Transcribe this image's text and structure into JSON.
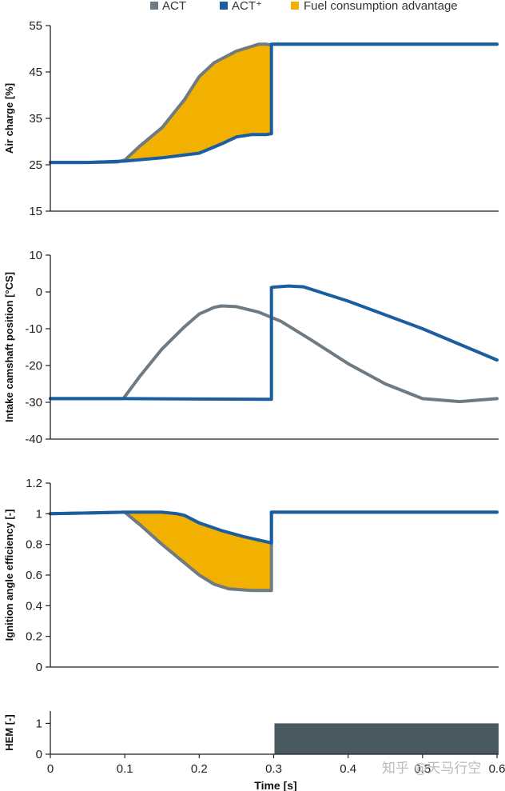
{
  "legend": {
    "items": [
      {
        "label": "ACT",
        "color": "#6e7b82"
      },
      {
        "label": "ACT⁺",
        "color": "#1a5ea0"
      },
      {
        "label": "Fuel consumption advantage",
        "color": "#f2b000"
      }
    ]
  },
  "xaxis": {
    "label": "Time [s]",
    "range": [
      0,
      0.6
    ],
    "ticks": [
      0,
      0.1,
      0.2,
      0.3,
      0.4,
      0.5,
      0.6
    ],
    "tick_labels": [
      "0",
      "0.1",
      "0.2",
      "0.3",
      "0.4",
      "0.5",
      "0.6"
    ]
  },
  "watermark": "知乎 @天马行空",
  "colors": {
    "act": "#6e7b82",
    "act_plus": "#1a5ea0",
    "advantage": "#f2b000",
    "hem": "#4a5860"
  },
  "chart_data": [
    {
      "type": "line",
      "id": "air",
      "ylabel": "Air charge [%]",
      "ylim": [
        15,
        55
      ],
      "yticks": [
        15,
        25,
        35,
        45,
        55
      ],
      "ytick_labels": [
        "15",
        "25",
        "35",
        "45",
        "55"
      ],
      "fill_between": [
        "ACT",
        "ACT⁺"
      ],
      "series": [
        {
          "name": "ACT",
          "x": [
            0,
            0.05,
            0.09,
            0.1,
            0.12,
            0.15,
            0.18,
            0.2,
            0.22,
            0.25,
            0.27,
            0.28,
            0.29,
            0.297,
            0.3,
            0.35,
            0.45,
            0.6
          ],
          "y": [
            25.5,
            25.5,
            25.6,
            26,
            29,
            33,
            39,
            44,
            47,
            49.5,
            50.5,
            51,
            51,
            50.8,
            51,
            51,
            51,
            51
          ]
        },
        {
          "name": "ACT⁺",
          "x": [
            0,
            0.05,
            0.1,
            0.15,
            0.2,
            0.23,
            0.25,
            0.27,
            0.29,
            0.297,
            0.297,
            0.3,
            0.35,
            0.45,
            0.6
          ],
          "y": [
            25.5,
            25.5,
            25.8,
            26.5,
            27.5,
            29.5,
            31,
            31.5,
            31.5,
            31.7,
            51,
            51,
            51,
            51,
            51
          ]
        }
      ]
    },
    {
      "type": "line",
      "id": "cam",
      "ylabel": "Intake camshaft position [°CS]",
      "ylim": [
        -40,
        10
      ],
      "yticks": [
        -40,
        -30,
        -20,
        -10,
        0,
        10
      ],
      "ytick_labels": [
        "-40",
        "-30",
        "-20",
        "-10",
        "0",
        "10"
      ],
      "series": [
        {
          "name": "ACT",
          "x": [
            0,
            0.05,
            0.098,
            0.12,
            0.15,
            0.18,
            0.2,
            0.22,
            0.23,
            0.25,
            0.28,
            0.31,
            0.35,
            0.4,
            0.45,
            0.5,
            0.55,
            0.6
          ],
          "y": [
            -29,
            -29,
            -29,
            -23,
            -15.5,
            -9.5,
            -6,
            -4.2,
            -3.8,
            -4,
            -5.5,
            -8,
            -13,
            -19.5,
            -25,
            -29,
            -29.8,
            -29
          ]
        },
        {
          "name": "ACT⁺",
          "x": [
            0,
            0.1,
            0.2,
            0.297,
            0.297,
            0.3,
            0.32,
            0.34,
            0.4,
            0.5,
            0.6
          ],
          "y": [
            -29,
            -29,
            -29.1,
            -29.2,
            1.2,
            1.3,
            1.6,
            1.4,
            -2.5,
            -10,
            -18.5
          ]
        }
      ]
    },
    {
      "type": "line",
      "id": "ign",
      "ylabel": "Ignition angle efficiency [-]",
      "ylim": [
        0,
        1.2
      ],
      "yticks": [
        0,
        0.2,
        0.4,
        0.6,
        0.8,
        1,
        1.2
      ],
      "ytick_labels": [
        "0",
        "0.2",
        "0.4",
        "0.6",
        "0.8",
        "1",
        "1.2"
      ],
      "fill_between": [
        "ACT⁺",
        "ACT"
      ],
      "series": [
        {
          "name": "ACT",
          "x": [
            0,
            0.05,
            0.1,
            0.12,
            0.15,
            0.18,
            0.2,
            0.22,
            0.24,
            0.27,
            0.297,
            0.297,
            0.3,
            0.4,
            0.6
          ],
          "y": [
            1.0,
            1.005,
            1.01,
            0.93,
            0.8,
            0.68,
            0.6,
            0.54,
            0.51,
            0.5,
            0.5,
            1.01,
            1.01,
            1.01,
            1.01
          ]
        },
        {
          "name": "ACT⁺",
          "x": [
            0,
            0.05,
            0.1,
            0.15,
            0.17,
            0.18,
            0.2,
            0.23,
            0.26,
            0.297,
            0.297,
            0.3,
            0.4,
            0.6
          ],
          "y": [
            1.0,
            1.005,
            1.01,
            1.01,
            1.0,
            0.99,
            0.94,
            0.89,
            0.85,
            0.81,
            1.01,
            1.01,
            1.01,
            1.01
          ]
        }
      ]
    },
    {
      "type": "area",
      "id": "hem",
      "ylabel": "HEM [-]",
      "ylim": [
        0,
        1.4
      ],
      "yticks": [
        0,
        1
      ],
      "ytick_labels": [
        "0",
        "1"
      ],
      "series": [
        {
          "name": "HEM",
          "x": [
            0,
            0.3,
            0.3,
            0.6
          ],
          "y": [
            0,
            0,
            1,
            1
          ]
        }
      ]
    }
  ]
}
